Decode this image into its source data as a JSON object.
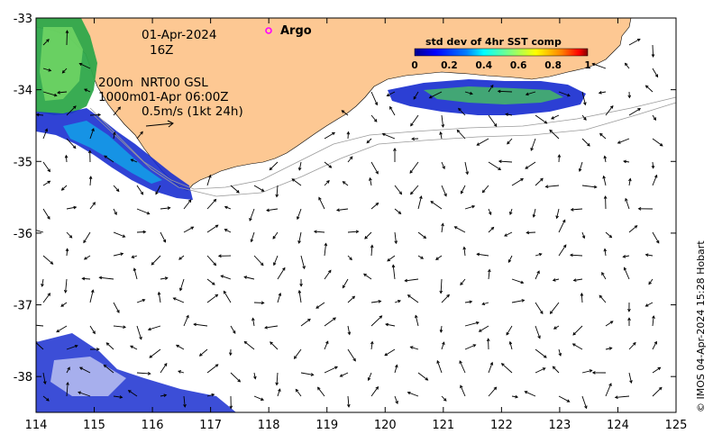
{
  "map": {
    "x_ticks": [
      "114",
      "115",
      "116",
      "117",
      "118",
      "119",
      "120",
      "121",
      "122",
      "123",
      "124",
      "125"
    ],
    "y_ticks": [
      "-33",
      "-34",
      "-35",
      "-36",
      "-37",
      "-38"
    ],
    "lon_range": [
      114,
      125
    ],
    "lat_range": [
      -38.5,
      -33
    ],
    "land_color": "#fdc893",
    "ocean_color": "#ffffff"
  },
  "annotations": {
    "date": "01-Apr-2024",
    "time": "16Z",
    "depth_200": "200m",
    "product": "NRT00 GSL",
    "depth_1000": "1000m",
    "valid_time": "01-Apr 06:00Z",
    "scale_text": "0.5m/s (1kt 24h)"
  },
  "legend": {
    "argo_label": "Argo",
    "argo_color": "#ff00ff"
  },
  "colorbar": {
    "title": "std dev of 4hr SST comp",
    "ticks": [
      "0",
      "0.2",
      "0.4",
      "0.6",
      "0.8",
      "1"
    ],
    "colors": [
      "#00008f",
      "#0000ff",
      "#0080ff",
      "#00ffff",
      "#80ff80",
      "#ffff00",
      "#ff8000",
      "#ff0000",
      "#800000"
    ]
  },
  "credit": "© IMOS 04-Apr-2024 15:28 Hobart"
}
